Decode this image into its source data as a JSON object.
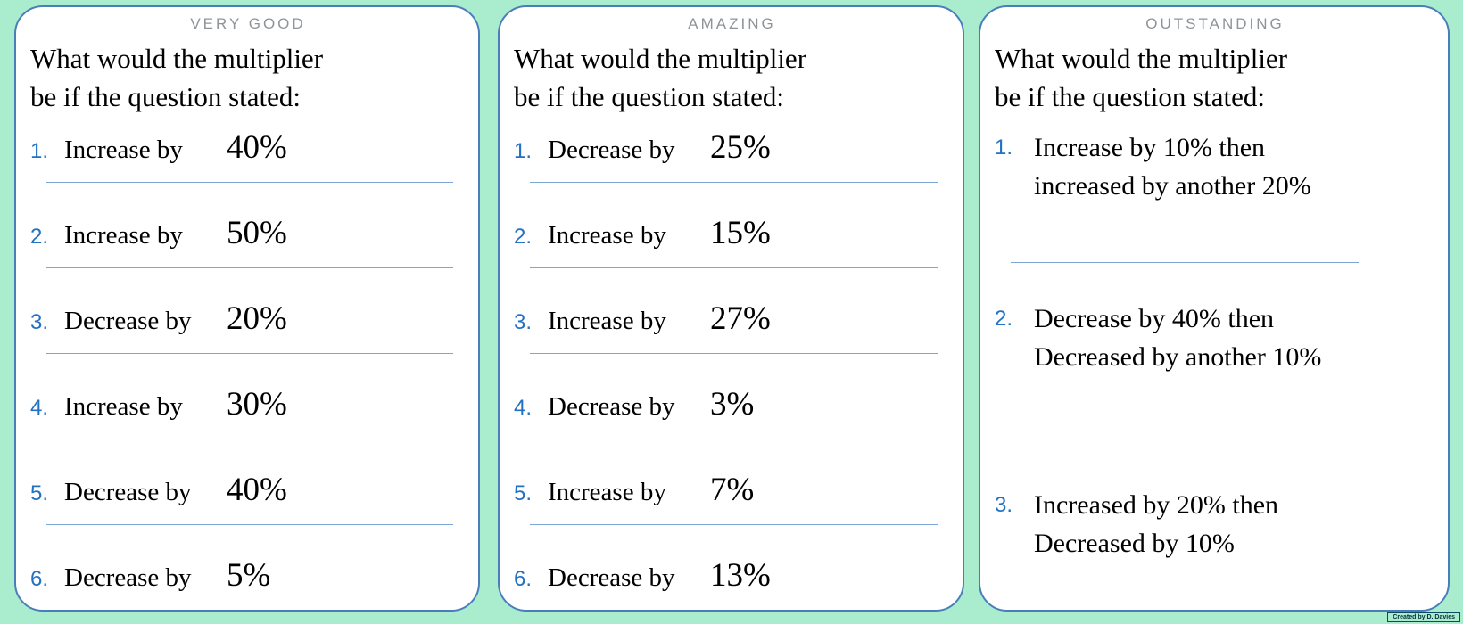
{
  "page": {
    "credit": "Created by D. Davies",
    "colors": {
      "background": "#a9ecce",
      "panel_border": "#4a7ebb",
      "separator": "#7ca6d5",
      "number_blue": "#2271c3",
      "title_gray": "#8f9499"
    }
  },
  "panels": [
    {
      "title": "VERY GOOD",
      "question": {
        "line1": "What would the multiplier",
        "line2": "be if the question stated:"
      },
      "items": [
        {
          "num": "1.",
          "label": "Increase by",
          "value": "40%"
        },
        {
          "num": "2.",
          "label": "Increase by",
          "value": "50%"
        },
        {
          "num": "3.",
          "label": "Decrease by",
          "value": "20%"
        },
        {
          "num": "4.",
          "label": "Increase by",
          "value": "30%"
        },
        {
          "num": "5.",
          "label": "Decrease by",
          "value": "40%"
        },
        {
          "num": "6.",
          "label": "Decrease by",
          "value": "5%"
        }
      ]
    },
    {
      "title": "AMAZING",
      "question": {
        "line1": "What would the multiplier",
        "line2": "be if the question stated:"
      },
      "items": [
        {
          "num": "1.",
          "label": "Decrease by",
          "value": "25%"
        },
        {
          "num": "2.",
          "label": "Increase by",
          "value": "15%"
        },
        {
          "num": "3.",
          "label": "Increase by",
          "value": "27%"
        },
        {
          "num": "4.",
          "label": "Decrease by",
          "value": "3%"
        },
        {
          "num": "5.",
          "label": "Increase by",
          "value": "7%"
        },
        {
          "num": "6.",
          "label": "Decrease by",
          "value": "13%"
        }
      ]
    },
    {
      "title": "OUTSTANDING",
      "question": {
        "line1": "What would the multiplier",
        "line2": "be if the question stated:"
      },
      "items": [
        {
          "num": "1.",
          "line1": "Increase by 10% then",
          "line2": "increased by another 20%"
        },
        {
          "num": "2.",
          "line1": "Decrease by 40% then",
          "line2": "Decreased by another 10%"
        },
        {
          "num": "3.",
          "line1": "Increased by 20% then",
          "line2": "Decreased by 10%"
        }
      ]
    }
  ]
}
